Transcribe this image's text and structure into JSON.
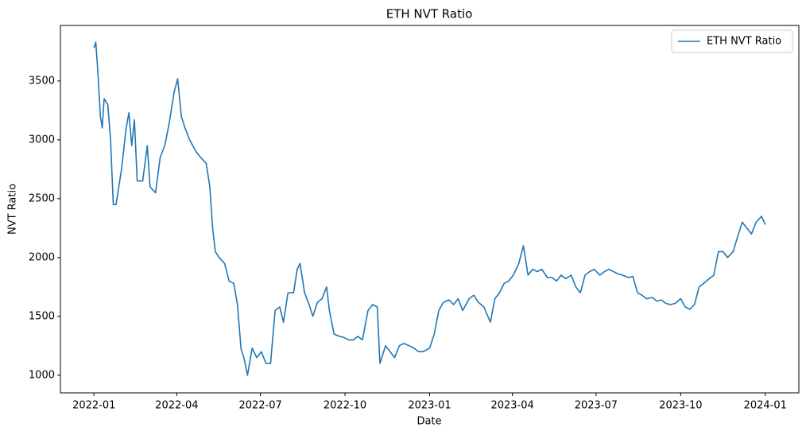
{
  "chart_data": {
    "type": "line",
    "title": "ETH NVT Ratio",
    "x_label": "Date",
    "y_label": "NVT Ratio",
    "x": [
      0,
      2,
      4,
      7,
      9,
      11,
      15,
      18,
      21,
      24,
      30,
      35,
      38,
      41,
      44,
      47,
      53,
      58,
      61,
      67,
      72,
      77,
      82,
      87,
      91,
      95,
      99,
      104,
      111,
      116,
      122,
      126,
      129,
      132,
      136,
      142,
      147,
      152,
      156,
      160,
      163,
      167,
      172,
      177,
      182,
      187,
      192,
      197,
      202,
      206,
      211,
      217,
      221,
      224,
      229,
      234,
      238,
      243,
      248,
      253,
      256,
      261,
      267,
      272,
      277,
      282,
      287,
      292,
      298,
      303,
      308,
      311,
      317,
      322,
      327,
      332,
      337,
      343,
      348,
      353,
      358,
      365,
      370,
      375,
      380,
      386,
      391,
      396,
      401,
      408,
      413,
      418,
      424,
      431,
      436,
      441,
      446,
      451,
      456,
      462,
      467,
      472,
      477,
      482,
      487,
      493,
      498,
      503,
      508,
      513,
      519,
      524,
      529,
      534,
      539,
      544,
      550,
      555,
      560,
      565,
      570,
      575,
      581,
      586,
      591,
      596,
      601,
      607,
      612,
      617,
      622,
      627,
      632,
      638,
      643,
      648,
      653,
      658,
      663,
      669,
      674,
      679,
      684,
      689,
      695,
      700,
      705,
      710,
      715,
      720,
      726,
      730
    ],
    "series": [
      {
        "name": "ETH NVT Ratio",
        "color": "#1f77b4",
        "values": [
          3780,
          3830,
          3600,
          3200,
          3100,
          3350,
          3300,
          3000,
          2450,
          2450,
          2750,
          3100,
          3230,
          2950,
          3170,
          2650,
          2650,
          2950,
          2600,
          2550,
          2850,
          2950,
          3150,
          3400,
          3520,
          3200,
          3100,
          3000,
          2900,
          2850,
          2800,
          2600,
          2250,
          2050,
          2000,
          1950,
          1800,
          1780,
          1600,
          1220,
          1150,
          1000,
          1230,
          1150,
          1200,
          1100,
          1100,
          1550,
          1580,
          1450,
          1700,
          1700,
          1900,
          1950,
          1700,
          1600,
          1500,
          1620,
          1650,
          1750,
          1550,
          1350,
          1330,
          1320,
          1300,
          1300,
          1330,
          1300,
          1550,
          1600,
          1580,
          1100,
          1250,
          1200,
          1150,
          1250,
          1270,
          1250,
          1230,
          1200,
          1200,
          1230,
          1350,
          1550,
          1620,
          1640,
          1600,
          1650,
          1550,
          1650,
          1680,
          1620,
          1580,
          1450,
          1650,
          1700,
          1780,
          1800,
          1850,
          1950,
          2100,
          1850,
          1900,
          1880,
          1900,
          1830,
          1830,
          1800,
          1850,
          1820,
          1850,
          1750,
          1700,
          1850,
          1880,
          1900,
          1850,
          1880,
          1900,
          1880,
          1860,
          1850,
          1830,
          1840,
          1700,
          1680,
          1650,
          1660,
          1630,
          1640,
          1610,
          1600,
          1610,
          1650,
          1580,
          1560,
          1600,
          1750,
          1780,
          1820,
          1850,
          2050,
          2050,
          2000,
          2050,
          2180,
          2300,
          2250,
          2200,
          2300,
          2350,
          2280
        ]
      }
    ],
    "xlim": [
      -36.5,
      766.5
    ],
    "xticks": [
      {
        "value": 0,
        "label": "2022-01"
      },
      {
        "value": 90,
        "label": "2022-04"
      },
      {
        "value": 181,
        "label": "2022-07"
      },
      {
        "value": 273,
        "label": "2022-10"
      },
      {
        "value": 365,
        "label": "2023-01"
      },
      {
        "value": 455,
        "label": "2023-04"
      },
      {
        "value": 546,
        "label": "2023-07"
      },
      {
        "value": 638,
        "label": "2023-10"
      },
      {
        "value": 730,
        "label": "2024-01"
      }
    ],
    "ylim": [
      850,
      3972
    ],
    "yticks": [
      1000,
      1500,
      2000,
      2500,
      3000,
      3500
    ],
    "legend": "upper right"
  }
}
